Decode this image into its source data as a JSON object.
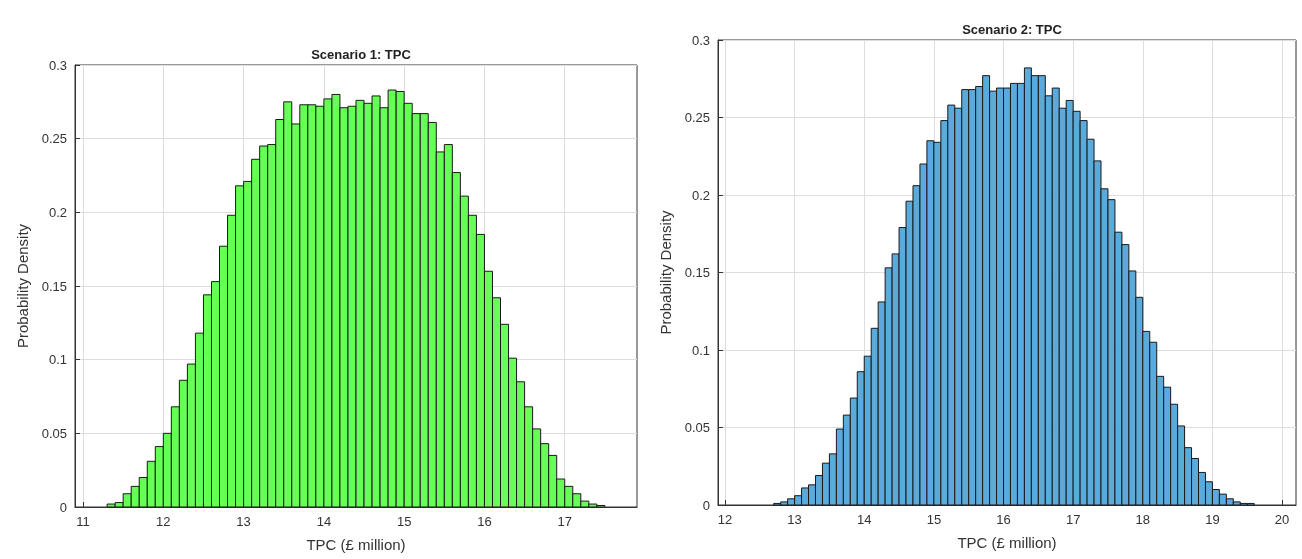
{
  "chart_data": [
    {
      "type": "histogram",
      "title": "Scenario 1: TPC",
      "xlabel": "TPC (£ million)",
      "ylabel": "Probability Density",
      "color": "#66ff55",
      "bins": [
        11.3,
        11.4,
        11.5,
        11.6,
        11.7,
        11.8,
        11.9,
        12.0,
        12.1,
        12.2,
        12.3,
        12.4,
        12.5,
        12.6,
        12.7,
        12.8,
        12.9,
        13.0,
        13.1,
        13.2,
        13.3,
        13.4,
        13.5,
        13.6,
        13.7,
        13.8,
        13.9,
        14.0,
        14.1,
        14.2,
        14.3,
        14.4,
        14.5,
        14.6,
        14.7,
        14.8,
        14.9,
        15.0,
        15.1,
        15.2,
        15.3,
        15.4,
        15.5,
        15.6,
        15.7,
        15.8,
        15.9,
        16.0,
        16.1,
        16.2,
        16.3,
        16.4,
        16.5,
        16.6,
        16.7,
        16.8,
        16.9,
        17.0,
        17.1,
        17.2,
        17.3,
        17.4,
        17.5
      ],
      "values": [
        0.002,
        0.003,
        0.009,
        0.014,
        0.02,
        0.031,
        0.041,
        0.05,
        0.068,
        0.086,
        0.097,
        0.118,
        0.144,
        0.153,
        0.177,
        0.198,
        0.218,
        0.221,
        0.236,
        0.245,
        0.246,
        0.263,
        0.275,
        0.26,
        0.273,
        0.273,
        0.272,
        0.277,
        0.28,
        0.271,
        0.272,
        0.276,
        0.274,
        0.279,
        0.271,
        0.283,
        0.282,
        0.274,
        0.267,
        0.267,
        0.261,
        0.241,
        0.246,
        0.227,
        0.211,
        0.198,
        0.185,
        0.16,
        0.142,
        0.124,
        0.101,
        0.085,
        0.068,
        0.053,
        0.043,
        0.035,
        0.019,
        0.014,
        0.009,
        0.004,
        0.002,
        0.001
      ],
      "xlim": [
        10.9,
        17.9
      ],
      "ylim": [
        0,
        0.3
      ],
      "xticks": [
        11,
        12,
        13,
        14,
        15,
        16,
        17
      ],
      "yticks": [
        0,
        0.05,
        0.1,
        0.15,
        0.2,
        0.25,
        0.3
      ],
      "grid": true
    },
    {
      "type": "histogram",
      "title": "Scenario 2: TPC",
      "xlabel": "TPC (£ million)",
      "ylabel": "Probability Density",
      "color": "#5aaadc",
      "bins": [
        12.7,
        12.8,
        12.9,
        13.0,
        13.1,
        13.2,
        13.3,
        13.4,
        13.5,
        13.6,
        13.7,
        13.8,
        13.9,
        14.0,
        14.1,
        14.2,
        14.3,
        14.4,
        14.5,
        14.6,
        14.7,
        14.8,
        14.9,
        15.0,
        15.1,
        15.2,
        15.3,
        15.4,
        15.5,
        15.6,
        15.7,
        15.8,
        15.9,
        16.0,
        16.1,
        16.2,
        16.3,
        16.4,
        16.5,
        16.6,
        16.7,
        16.8,
        16.9,
        17.0,
        17.1,
        17.2,
        17.3,
        17.4,
        17.5,
        17.6,
        17.7,
        17.8,
        17.9,
        18.0,
        18.1,
        18.2,
        18.3,
        18.4,
        18.5,
        18.6,
        18.7,
        18.8,
        18.9,
        19.0,
        19.1,
        19.2,
        19.3,
        19.4,
        19.5,
        19.6
      ],
      "values": [
        0.001,
        0.002,
        0.004,
        0.006,
        0.011,
        0.013,
        0.019,
        0.027,
        0.033,
        0.049,
        0.058,
        0.069,
        0.086,
        0.096,
        0.114,
        0.131,
        0.153,
        0.162,
        0.179,
        0.196,
        0.206,
        0.22,
        0.235,
        0.234,
        0.248,
        0.258,
        0.256,
        0.268,
        0.268,
        0.27,
        0.277,
        0.267,
        0.269,
        0.269,
        0.272,
        0.272,
        0.282,
        0.277,
        0.277,
        0.264,
        0.269,
        0.256,
        0.261,
        0.254,
        0.248,
        0.236,
        0.222,
        0.204,
        0.197,
        0.176,
        0.168,
        0.151,
        0.134,
        0.112,
        0.105,
        0.083,
        0.076,
        0.065,
        0.051,
        0.037,
        0.03,
        0.021,
        0.015,
        0.01,
        0.007,
        0.004,
        0.002,
        0.001,
        0.001
      ],
      "xlim": [
        11.9,
        20.2
      ],
      "ylim": [
        0,
        0.3
      ],
      "xticks": [
        12,
        13,
        14,
        15,
        16,
        17,
        18,
        19,
        20
      ],
      "yticks": [
        0,
        0.05,
        0.1,
        0.15,
        0.2,
        0.25,
        0.3
      ],
      "grid": true
    }
  ]
}
